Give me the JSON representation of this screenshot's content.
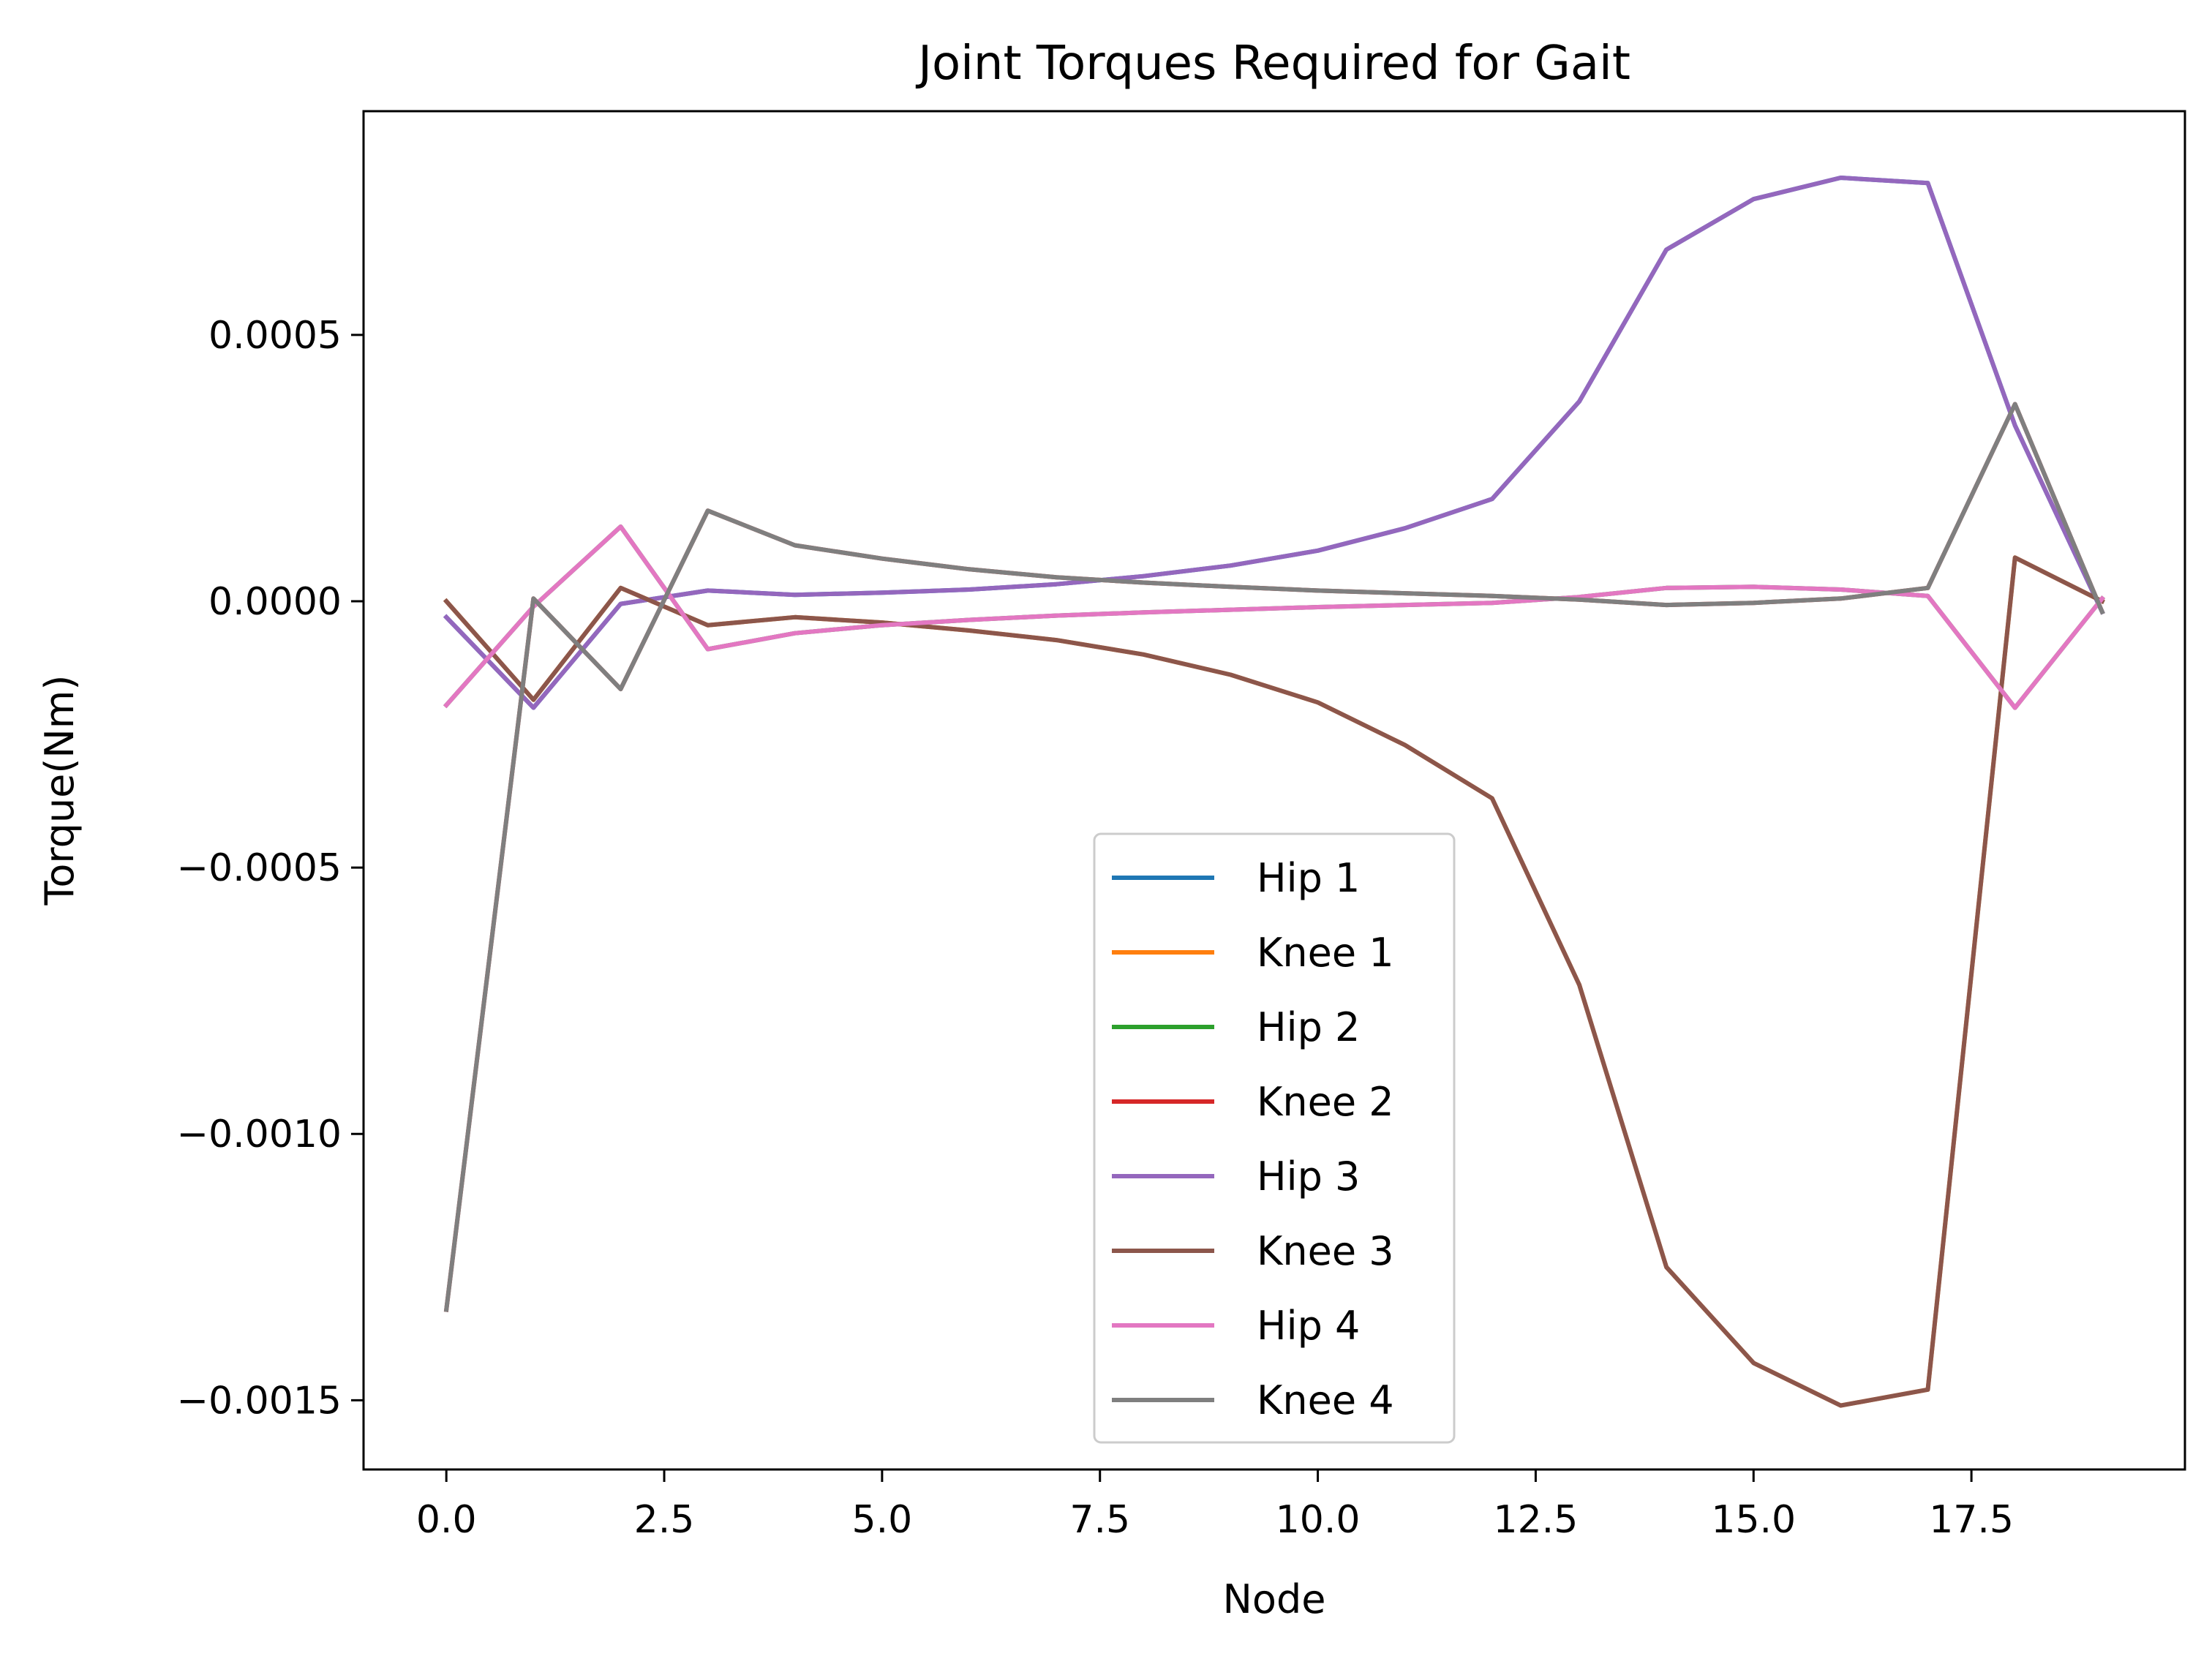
{
  "chart_data": {
    "type": "line",
    "title": "Joint Torques Required for Gait",
    "xlabel": "Node",
    "ylabel": "Torque(Nm)",
    "xlim": [
      -0.95,
      19.95
    ],
    "ylim": [
      -0.00163,
      0.00092
    ],
    "xticks": [
      0,
      2.5,
      5,
      7.5,
      10,
      12.5,
      15,
      17.5
    ],
    "xtick_labels": [
      "0.0",
      "2.5",
      "5.0",
      "7.5",
      "10.0",
      "12.5",
      "15.0",
      "17.5"
    ],
    "yticks": [
      0.0005,
      0,
      -0.0005,
      -0.001,
      -0.0015
    ],
    "ytick_labels": [
      "0.0005",
      "0.0000",
      "−0.0005",
      "−0.0010",
      "−0.0015"
    ],
    "grid": false,
    "legend_position": "lower-center",
    "x": [
      0,
      1,
      2,
      3,
      4,
      5,
      6,
      7,
      8,
      9,
      10,
      11,
      12,
      13,
      14,
      15,
      16,
      17,
      18,
      19
    ],
    "series": [
      {
        "name": "Hip 1",
        "color": "#1f77b4",
        "values": [
          -3e-05,
          -0.0002,
          -5e-06,
          2e-05,
          1.2e-05,
          1.6e-05,
          2.2e-05,
          3.2e-05,
          4.7e-05,
          6.7e-05,
          9.5e-05,
          0.000137,
          0.000192,
          0.000375,
          0.00066,
          0.000755,
          0.000795,
          0.000785,
          0.00033,
          -2e-05
        ]
      },
      {
        "name": "Knee 1",
        "color": "#ff7f0e",
        "values": [
          0,
          -0.000185,
          2.5e-05,
          -4.5e-05,
          -3e-05,
          -4e-05,
          -5.5e-05,
          -7.3e-05,
          -0.0001,
          -0.000138,
          -0.00019,
          -0.00027,
          -0.00037,
          -0.00072,
          -0.00125,
          -0.00143,
          -0.00151,
          -0.00148,
          8.2e-05,
          0
        ]
      },
      {
        "name": "Hip 2",
        "color": "#2ca02c",
        "values": [
          -0.000195,
          -1e-05,
          0.00014,
          -9e-05,
          -6e-05,
          -4.5e-05,
          -3.5e-05,
          -2.7e-05,
          -2.1e-05,
          -1.6e-05,
          -1.1e-05,
          -7e-06,
          -3e-06,
          8e-06,
          2.5e-05,
          2.7e-05,
          2.2e-05,
          1e-05,
          -0.0002,
          5e-06
        ]
      },
      {
        "name": "Knee 2",
        "color": "#d62728",
        "values": [
          -0.00133,
          5e-06,
          -0.000165,
          0.00017,
          0.000105,
          8e-05,
          6e-05,
          4.5e-05,
          3.5e-05,
          2.7e-05,
          2e-05,
          1.5e-05,
          1e-05,
          3e-06,
          -7e-06,
          -3e-06,
          5e-06,
          2.5e-05,
          0.00037,
          -2e-05
        ]
      },
      {
        "name": "Hip 3",
        "color": "#9467bd",
        "values": [
          -3e-05,
          -0.0002,
          -5e-06,
          2e-05,
          1.2e-05,
          1.6e-05,
          2.2e-05,
          3.2e-05,
          4.7e-05,
          6.7e-05,
          9.5e-05,
          0.000137,
          0.000192,
          0.000375,
          0.00066,
          0.000755,
          0.000795,
          0.000785,
          0.00033,
          -2e-05
        ]
      },
      {
        "name": "Knee 3",
        "color": "#8c564b",
        "values": [
          0,
          -0.000185,
          2.5e-05,
          -4.5e-05,
          -3e-05,
          -4e-05,
          -5.5e-05,
          -7.3e-05,
          -0.0001,
          -0.000138,
          -0.00019,
          -0.00027,
          -0.00037,
          -0.00072,
          -0.00125,
          -0.00143,
          -0.00151,
          -0.00148,
          8.2e-05,
          0
        ]
      },
      {
        "name": "Hip 4",
        "color": "#e377c2",
        "values": [
          -0.000195,
          -1e-05,
          0.00014,
          -9e-05,
          -6e-05,
          -4.5e-05,
          -3.5e-05,
          -2.7e-05,
          -2.1e-05,
          -1.6e-05,
          -1.1e-05,
          -7e-06,
          -3e-06,
          8e-06,
          2.5e-05,
          2.7e-05,
          2.2e-05,
          1e-05,
          -0.0002,
          5e-06
        ]
      },
      {
        "name": "Knee 4",
        "color": "#7f7f7f",
        "values": [
          -0.00133,
          5e-06,
          -0.000165,
          0.00017,
          0.000105,
          8e-05,
          6e-05,
          4.5e-05,
          3.5e-05,
          2.7e-05,
          2e-05,
          1.5e-05,
          1e-05,
          3e-06,
          -7e-06,
          -3e-06,
          5e-06,
          2.5e-05,
          0.00037,
          -2e-05
        ]
      }
    ]
  }
}
